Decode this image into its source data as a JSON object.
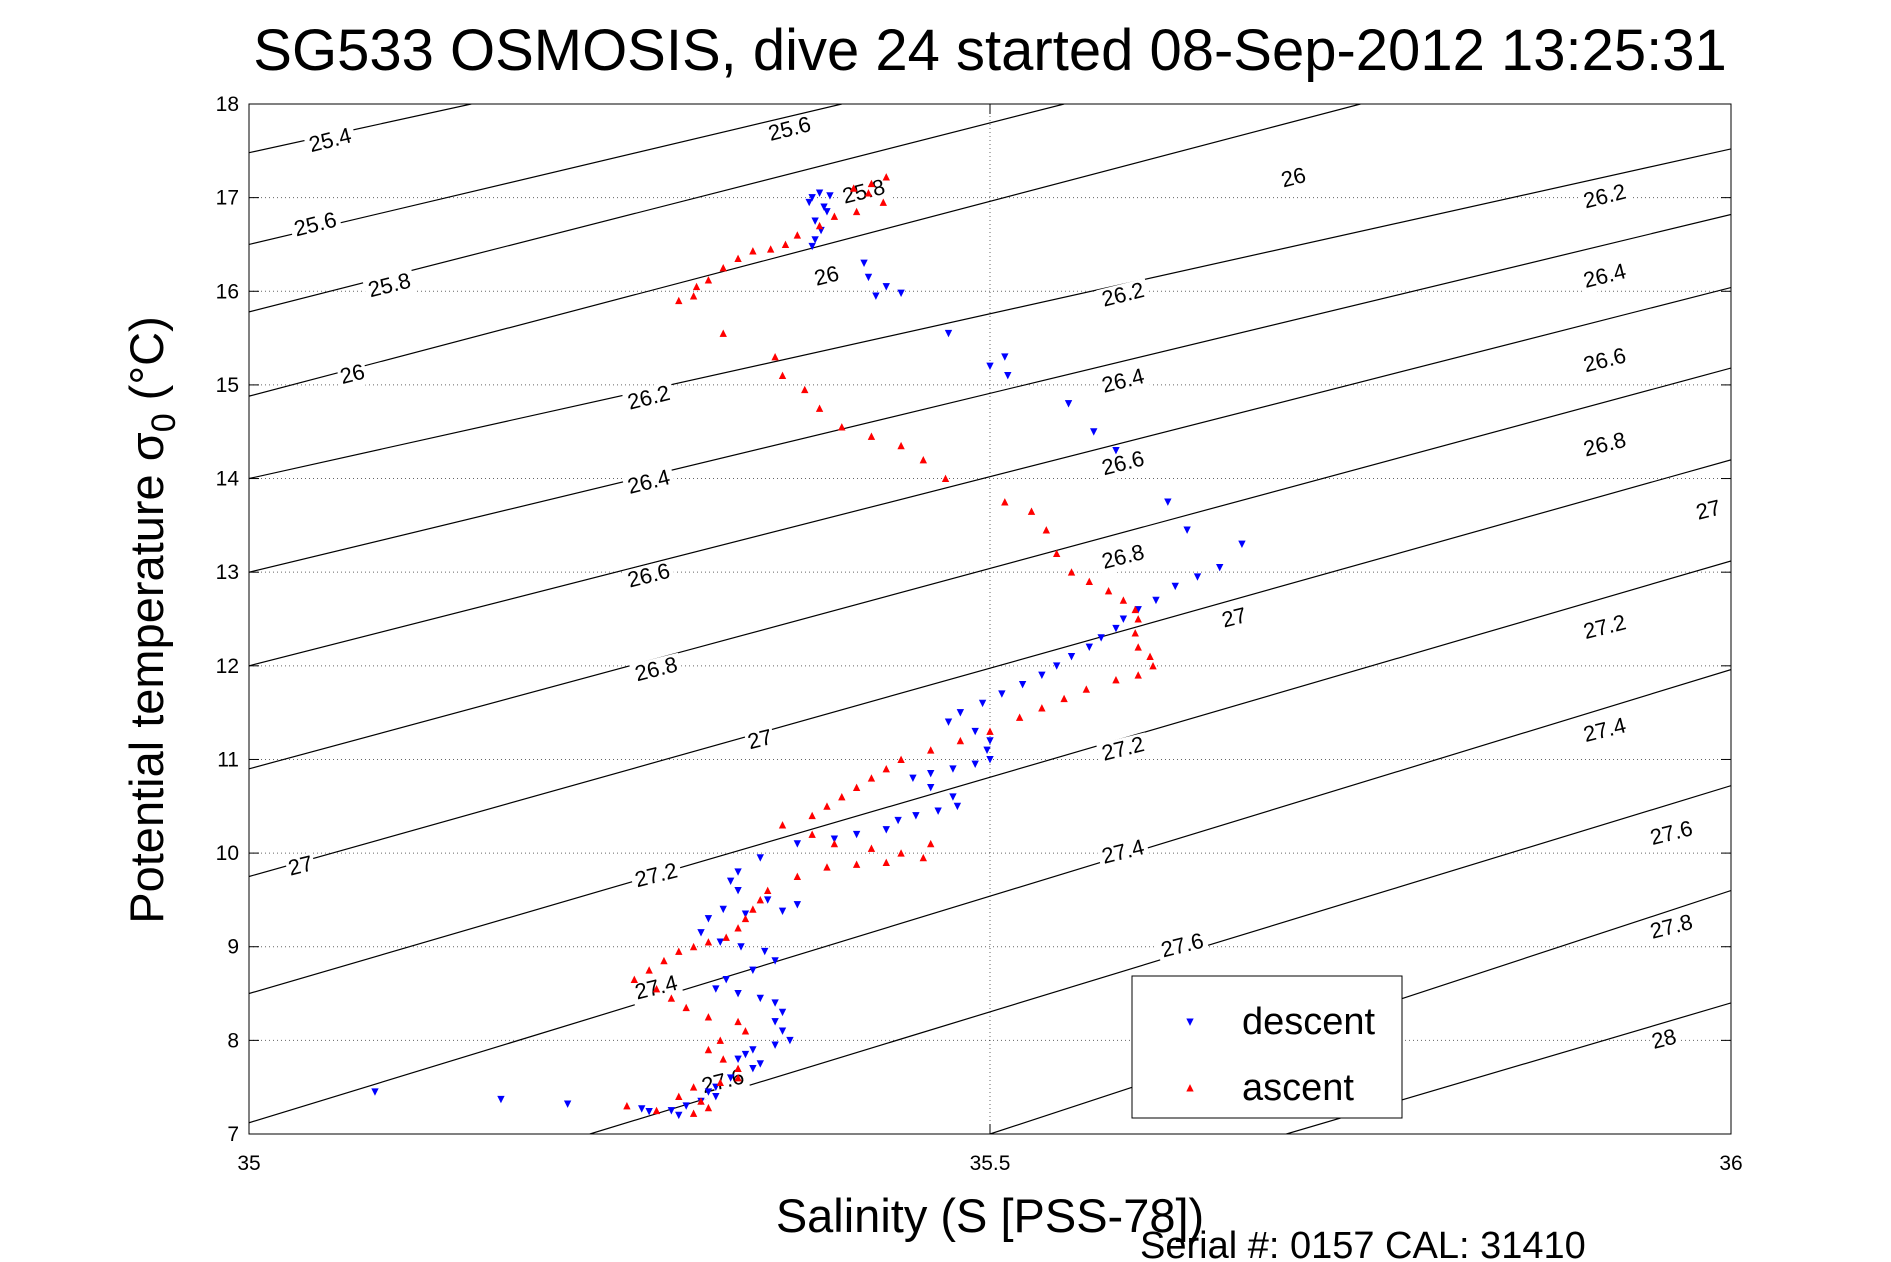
{
  "chart_data": {
    "type": "scatter",
    "title": "SG533 OSMOSIS, dive 24 started 08-Sep-2012 13:25:31",
    "xlabel": "Salinity (S [PSS-78])",
    "ylabel": "Potential temperature σ",
    "ylabel_sub": "0",
    "ylabel_unit": " (°C)",
    "xlim": [
      35,
      36
    ],
    "ylim": [
      7,
      18
    ],
    "xticks": [
      35,
      35.5,
      36
    ],
    "xtick_labels": [
      "35",
      "35.5",
      "36"
    ],
    "yticks": [
      7,
      8,
      9,
      10,
      11,
      12,
      13,
      14,
      15,
      16,
      17,
      18
    ],
    "ytick_labels": [
      "7",
      "8",
      "9",
      "10",
      "11",
      "12",
      "13",
      "14",
      "15",
      "16",
      "17",
      "18"
    ],
    "grid": true,
    "legend_position": "bottom-right",
    "footer": "Serial #: 0157  CAL: 31410",
    "series": [
      {
        "name": "descent",
        "color": "#0000ff",
        "marker": "triangle-down",
        "points": [
          [
            35.385,
            17.05
          ],
          [
            35.38,
            17.0
          ],
          [
            35.378,
            16.95
          ],
          [
            35.388,
            16.9
          ],
          [
            35.392,
            17.02
          ],
          [
            35.39,
            16.85
          ],
          [
            35.382,
            16.75
          ],
          [
            35.386,
            16.65
          ],
          [
            35.382,
            16.55
          ],
          [
            35.38,
            16.48
          ],
          [
            35.415,
            16.3
          ],
          [
            35.418,
            16.15
          ],
          [
            35.43,
            16.05
          ],
          [
            35.423,
            15.95
          ],
          [
            35.44,
            15.98
          ],
          [
            35.472,
            15.55
          ],
          [
            35.51,
            15.3
          ],
          [
            35.512,
            15.1
          ],
          [
            35.5,
            15.2
          ],
          [
            35.553,
            14.8
          ],
          [
            35.57,
            14.5
          ],
          [
            35.585,
            14.3
          ],
          [
            35.62,
            13.75
          ],
          [
            35.633,
            13.45
          ],
          [
            35.67,
            13.3
          ],
          [
            35.655,
            13.05
          ],
          [
            35.64,
            12.95
          ],
          [
            35.625,
            12.85
          ],
          [
            35.612,
            12.7
          ],
          [
            35.6,
            12.6
          ],
          [
            35.59,
            12.5
          ],
          [
            35.585,
            12.4
          ],
          [
            35.575,
            12.3
          ],
          [
            35.567,
            12.2
          ],
          [
            35.555,
            12.1
          ],
          [
            35.545,
            12.0
          ],
          [
            35.535,
            11.9
          ],
          [
            35.522,
            11.8
          ],
          [
            35.508,
            11.7
          ],
          [
            35.495,
            11.6
          ],
          [
            35.48,
            11.5
          ],
          [
            35.472,
            11.4
          ],
          [
            35.49,
            11.3
          ],
          [
            35.5,
            11.2
          ],
          [
            35.498,
            11.1
          ],
          [
            35.5,
            11.0
          ],
          [
            35.49,
            10.95
          ],
          [
            35.475,
            10.9
          ],
          [
            35.46,
            10.85
          ],
          [
            35.448,
            10.8
          ],
          [
            35.46,
            10.7
          ],
          [
            35.475,
            10.6
          ],
          [
            35.478,
            10.5
          ],
          [
            35.465,
            10.45
          ],
          [
            35.45,
            10.4
          ],
          [
            35.438,
            10.35
          ],
          [
            35.43,
            10.25
          ],
          [
            35.41,
            10.2
          ],
          [
            35.395,
            10.15
          ],
          [
            35.37,
            10.1
          ],
          [
            35.345,
            9.95
          ],
          [
            35.33,
            9.8
          ],
          [
            35.325,
            9.7
          ],
          [
            35.33,
            9.6
          ],
          [
            35.35,
            9.5
          ],
          [
            35.37,
            9.45
          ],
          [
            35.36,
            9.38
          ],
          [
            35.335,
            9.35
          ],
          [
            35.32,
            9.4
          ],
          [
            35.31,
            9.3
          ],
          [
            35.305,
            9.15
          ],
          [
            35.318,
            9.05
          ],
          [
            35.332,
            9.0
          ],
          [
            35.348,
            8.95
          ],
          [
            35.355,
            8.85
          ],
          [
            35.34,
            8.75
          ],
          [
            35.322,
            8.65
          ],
          [
            35.315,
            8.55
          ],
          [
            35.33,
            8.5
          ],
          [
            35.345,
            8.45
          ],
          [
            35.355,
            8.4
          ],
          [
            35.36,
            8.3
          ],
          [
            35.355,
            8.2
          ],
          [
            35.36,
            8.1
          ],
          [
            35.365,
            8.0
          ],
          [
            35.355,
            7.95
          ],
          [
            35.34,
            7.9
          ],
          [
            35.335,
            7.85
          ],
          [
            35.33,
            7.8
          ],
          [
            35.345,
            7.75
          ],
          [
            35.34,
            7.7
          ],
          [
            35.325,
            7.6
          ],
          [
            35.315,
            7.5
          ],
          [
            35.31,
            7.45
          ],
          [
            35.315,
            7.4
          ],
          [
            35.305,
            7.35
          ],
          [
            35.295,
            7.3
          ],
          [
            35.285,
            7.25
          ],
          [
            35.29,
            7.2
          ],
          [
            35.085,
            7.45
          ],
          [
            35.17,
            7.37
          ],
          [
            35.215,
            7.32
          ],
          [
            35.265,
            7.27
          ],
          [
            35.27,
            7.24
          ]
        ]
      },
      {
        "name": "ascent",
        "color": "#ff0000",
        "marker": "triangle-up",
        "points": [
          [
            35.43,
            17.22
          ],
          [
            35.42,
            17.15
          ],
          [
            35.408,
            17.1
          ],
          [
            35.418,
            17.05
          ],
          [
            35.428,
            16.95
          ],
          [
            35.41,
            16.85
          ],
          [
            35.395,
            16.8
          ],
          [
            35.385,
            16.7
          ],
          [
            35.37,
            16.6
          ],
          [
            35.362,
            16.5
          ],
          [
            35.352,
            16.45
          ],
          [
            35.34,
            16.43
          ],
          [
            35.33,
            16.35
          ],
          [
            35.32,
            16.25
          ],
          [
            35.31,
            16.12
          ],
          [
            35.302,
            16.05
          ],
          [
            35.3,
            15.95
          ],
          [
            35.29,
            15.9
          ],
          [
            35.32,
            15.55
          ],
          [
            35.355,
            15.3
          ],
          [
            35.36,
            15.1
          ],
          [
            35.375,
            14.95
          ],
          [
            35.385,
            14.75
          ],
          [
            35.4,
            14.55
          ],
          [
            35.42,
            14.45
          ],
          [
            35.44,
            14.35
          ],
          [
            35.455,
            14.2
          ],
          [
            35.47,
            14.0
          ],
          [
            35.51,
            13.75
          ],
          [
            35.528,
            13.65
          ],
          [
            35.538,
            13.45
          ],
          [
            35.545,
            13.2
          ],
          [
            35.555,
            13.0
          ],
          [
            35.567,
            12.9
          ],
          [
            35.58,
            12.8
          ],
          [
            35.59,
            12.7
          ],
          [
            35.598,
            12.6
          ],
          [
            35.6,
            12.5
          ],
          [
            35.598,
            12.35
          ],
          [
            35.6,
            12.2
          ],
          [
            35.608,
            12.1
          ],
          [
            35.61,
            12.0
          ],
          [
            35.6,
            11.9
          ],
          [
            35.585,
            11.85
          ],
          [
            35.565,
            11.75
          ],
          [
            35.55,
            11.65
          ],
          [
            35.535,
            11.55
          ],
          [
            35.52,
            11.45
          ],
          [
            35.5,
            11.3
          ],
          [
            35.48,
            11.2
          ],
          [
            35.46,
            11.1
          ],
          [
            35.44,
            11.0
          ],
          [
            35.43,
            10.9
          ],
          [
            35.42,
            10.8
          ],
          [
            35.41,
            10.7
          ],
          [
            35.4,
            10.6
          ],
          [
            35.39,
            10.5
          ],
          [
            35.38,
            10.4
          ],
          [
            35.36,
            10.3
          ],
          [
            35.38,
            10.2
          ],
          [
            35.395,
            10.1
          ],
          [
            35.42,
            10.05
          ],
          [
            35.44,
            10.0
          ],
          [
            35.46,
            10.1
          ],
          [
            35.455,
            9.95
          ],
          [
            35.43,
            9.9
          ],
          [
            35.41,
            9.88
          ],
          [
            35.39,
            9.85
          ],
          [
            35.37,
            9.75
          ],
          [
            35.35,
            9.6
          ],
          [
            35.345,
            9.5
          ],
          [
            35.34,
            9.4
          ],
          [
            35.335,
            9.3
          ],
          [
            35.33,
            9.2
          ],
          [
            35.322,
            9.1
          ],
          [
            35.31,
            9.05
          ],
          [
            35.3,
            9.0
          ],
          [
            35.29,
            8.95
          ],
          [
            35.28,
            8.85
          ],
          [
            35.27,
            8.75
          ],
          [
            35.26,
            8.65
          ],
          [
            35.275,
            8.55
          ],
          [
            35.285,
            8.45
          ],
          [
            35.295,
            8.35
          ],
          [
            35.31,
            8.25
          ],
          [
            35.33,
            8.2
          ],
          [
            35.335,
            8.1
          ],
          [
            35.318,
            8.0
          ],
          [
            35.31,
            7.9
          ],
          [
            35.32,
            7.8
          ],
          [
            35.33,
            7.7
          ],
          [
            35.33,
            7.6
          ],
          [
            35.318,
            7.55
          ],
          [
            35.3,
            7.5
          ],
          [
            35.29,
            7.4
          ],
          [
            35.305,
            7.35
          ],
          [
            35.31,
            7.28
          ],
          [
            35.3,
            7.22
          ],
          [
            35.275,
            7.25
          ],
          [
            35.255,
            7.3
          ]
        ]
      }
    ],
    "density_contours": [
      {
        "label": "25.4",
        "points": [
          [
            35.0,
            17.48
          ],
          [
            35.15,
            18.0
          ]
        ]
      },
      {
        "label": "25.6",
        "points": [
          [
            35.0,
            16.5
          ],
          [
            35.4,
            18.0
          ]
        ]
      },
      {
        "label": "25.8",
        "points": [
          [
            35.0,
            15.78
          ],
          [
            35.55,
            18.0
          ]
        ]
      },
      {
        "label": "26",
        "points": [
          [
            35.0,
            14.88
          ],
          [
            35.75,
            18.0
          ]
        ]
      },
      {
        "label": "26.2",
        "points": [
          [
            35.0,
            14.0
          ],
          [
            36.0,
            17.52
          ]
        ]
      },
      {
        "label": "26.4",
        "points": [
          [
            35.0,
            13.0
          ],
          [
            36.0,
            16.82
          ]
        ]
      },
      {
        "label": "26.6",
        "points": [
          [
            35.0,
            12.0
          ],
          [
            36.0,
            16.04
          ]
        ]
      },
      {
        "label": "26.8",
        "points": [
          [
            35.0,
            10.9
          ],
          [
            36.0,
            15.18
          ]
        ]
      },
      {
        "label": "27",
        "points": [
          [
            35.0,
            9.75
          ],
          [
            36.0,
            14.2
          ]
        ]
      },
      {
        "label": "27.2",
        "points": [
          [
            35.0,
            8.5
          ],
          [
            36.0,
            13.12
          ]
        ]
      },
      {
        "label": "27.4",
        "points": [
          [
            35.0,
            7.12
          ],
          [
            36.0,
            11.96
          ]
        ]
      },
      {
        "label": "27.6",
        "points": [
          [
            35.23,
            7.0
          ],
          [
            36.0,
            10.72
          ]
        ]
      },
      {
        "label": "27.8",
        "points": [
          [
            35.5,
            7.0
          ],
          [
            36.0,
            9.6
          ]
        ]
      },
      {
        "label": "28",
        "points": [
          [
            35.7,
            7.0
          ],
          [
            36.0,
            8.4
          ]
        ]
      }
    ],
    "contour_labels": [
      {
        "text": "25.4",
        "x": 35.055,
        "y": 17.6
      },
      {
        "text": "25.6",
        "x": 35.365,
        "y": 17.72
      },
      {
        "text": "25.8",
        "x": 35.415,
        "y": 17.05
      },
      {
        "text": "26",
        "x": 35.705,
        "y": 17.2
      },
      {
        "text": "26.2",
        "x": 35.915,
        "y": 17.0
      },
      {
        "text": "25.6",
        "x": 35.045,
        "y": 16.7
      },
      {
        "text": "25.8",
        "x": 35.095,
        "y": 16.05
      },
      {
        "text": "26",
        "x": 35.39,
        "y": 16.15
      },
      {
        "text": "26.2",
        "x": 35.59,
        "y": 15.95
      },
      {
        "text": "26.4",
        "x": 35.915,
        "y": 16.15
      },
      {
        "text": "26",
        "x": 35.07,
        "y": 15.1
      },
      {
        "text": "26.2",
        "x": 35.27,
        "y": 14.85
      },
      {
        "text": "26.4",
        "x": 35.59,
        "y": 15.03
      },
      {
        "text": "26.6",
        "x": 35.915,
        "y": 15.25
      },
      {
        "text": "26.4",
        "x": 35.27,
        "y": 13.95
      },
      {
        "text": "26.6",
        "x": 35.59,
        "y": 14.15
      },
      {
        "text": "26.8",
        "x": 35.915,
        "y": 14.35
      },
      {
        "text": "26.6",
        "x": 35.27,
        "y": 12.95
      },
      {
        "text": "26.8",
        "x": 35.59,
        "y": 13.15
      },
      {
        "text": "27",
        "x": 35.985,
        "y": 13.65
      },
      {
        "text": "26.8",
        "x": 35.275,
        "y": 11.95
      },
      {
        "text": "27",
        "x": 35.665,
        "y": 12.5
      },
      {
        "text": "27.2",
        "x": 35.915,
        "y": 12.4
      },
      {
        "text": "27",
        "x": 35.345,
        "y": 11.2
      },
      {
        "text": "27.2",
        "x": 35.59,
        "y": 11.1
      },
      {
        "text": "27.4",
        "x": 35.915,
        "y": 11.3
      },
      {
        "text": "27",
        "x": 35.035,
        "y": 9.85
      },
      {
        "text": "27.2",
        "x": 35.275,
        "y": 9.75
      },
      {
        "text": "27.4",
        "x": 35.59,
        "y": 10.0
      },
      {
        "text": "27.6",
        "x": 35.96,
        "y": 10.2
      },
      {
        "text": "27.4",
        "x": 35.275,
        "y": 8.55
      },
      {
        "text": "27.6",
        "x": 35.63,
        "y": 9.0
      },
      {
        "text": "27.8",
        "x": 35.96,
        "y": 9.2
      },
      {
        "text": "27.6",
        "x": 35.32,
        "y": 7.55
      },
      {
        "text": "28",
        "x": 35.955,
        "y": 8.0
      }
    ]
  }
}
